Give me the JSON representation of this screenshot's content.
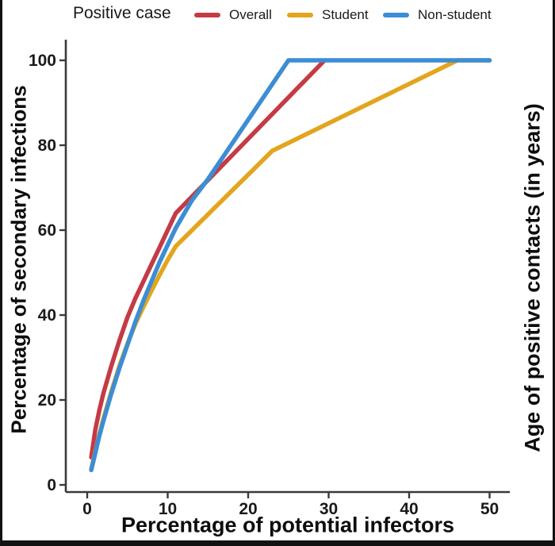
{
  "chart_data": {
    "type": "line",
    "legend_title": "Positive case",
    "legend_position": "top",
    "grid": false,
    "x_label": "Percentage of potential infectors",
    "y_label": "Percentage of secondary infections",
    "y2_label": "Age of positive contacts (in years)",
    "xlim": [
      0,
      50
    ],
    "ylim": [
      0,
      100
    ],
    "x_ticks": [
      0,
      10,
      20,
      30,
      40,
      50
    ],
    "y_ticks": [
      0,
      20,
      40,
      60,
      80,
      100
    ],
    "axis_color": "#3a3a3a",
    "series": [
      {
        "name": "Overall",
        "color": "#C43B45",
        "points": [
          [
            0.5,
            6.5
          ],
          [
            1,
            13
          ],
          [
            1.5,
            17.5
          ],
          [
            2,
            21.5
          ],
          [
            3,
            28
          ],
          [
            4,
            34
          ],
          [
            5,
            39.5
          ],
          [
            6,
            44
          ],
          [
            7,
            48
          ],
          [
            8,
            52
          ],
          [
            9,
            56
          ],
          [
            10,
            60
          ],
          [
            11,
            64
          ],
          [
            29.5,
            100
          ]
        ]
      },
      {
        "name": "Student",
        "color": "#E2A51D",
        "points": [
          [
            0.5,
            3.8
          ],
          [
            1,
            7.8
          ],
          [
            1.5,
            11.8
          ],
          [
            2,
            15.5
          ],
          [
            3,
            22
          ],
          [
            4,
            28
          ],
          [
            5,
            33.3
          ],
          [
            6,
            38
          ],
          [
            7,
            42
          ],
          [
            8,
            45.8
          ],
          [
            9,
            49.5
          ],
          [
            10,
            53
          ],
          [
            11,
            56.2
          ],
          [
            23,
            78.7
          ],
          [
            46,
            100
          ],
          [
            50,
            100
          ]
        ]
      },
      {
        "name": "Non-student",
        "color": "#3C8DD4",
        "points": [
          [
            0.5,
            3.5
          ],
          [
            1,
            7.5
          ],
          [
            1.5,
            11.5
          ],
          [
            2,
            15
          ],
          [
            3,
            21.5
          ],
          [
            4,
            27.5
          ],
          [
            5,
            33
          ],
          [
            6,
            38.5
          ],
          [
            7,
            43.5
          ],
          [
            8,
            48
          ],
          [
            9,
            52.5
          ],
          [
            10,
            56.5
          ],
          [
            11,
            60.5
          ],
          [
            13,
            67
          ],
          [
            15,
            72
          ],
          [
            25,
            100
          ],
          [
            50,
            100
          ]
        ]
      }
    ]
  }
}
